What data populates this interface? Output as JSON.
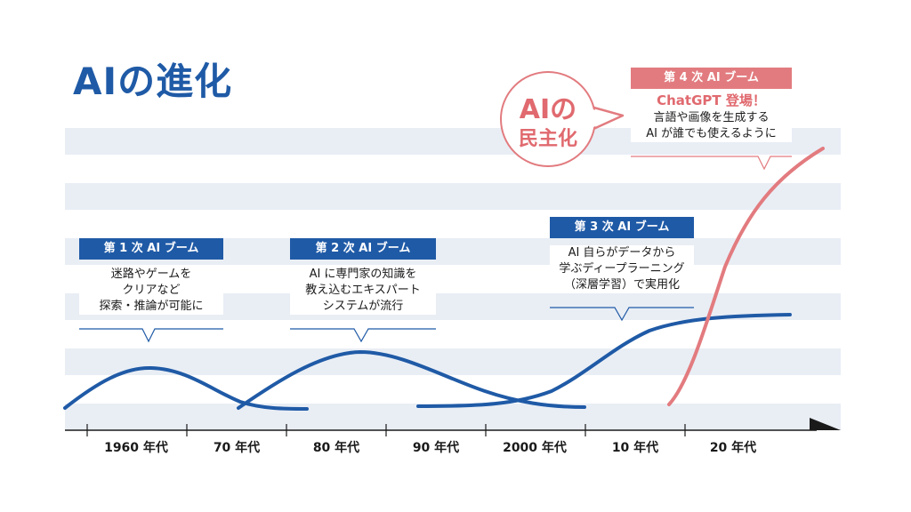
{
  "title": "AIの進化",
  "colors": {
    "blue": "#1f5aa6",
    "red": "#e27b7f",
    "stripe": "#e9eef5",
    "text": "#1a1a1a"
  },
  "timeline": {
    "labels": [
      "1960 年代",
      "70 年代",
      "80 年代",
      "90 年代",
      "2000 年代",
      "10 年代",
      "20 年代"
    ]
  },
  "booms": [
    {
      "heading": "第 1 次 AI ブーム",
      "lines": [
        "迷路やゲームを",
        "クリアなど",
        "探索・推論が可能に"
      ]
    },
    {
      "heading": "第 2 次 AI ブーム",
      "lines": [
        "AI に専門家の知識を",
        "教え込むエキスパート",
        "システムが流行"
      ]
    },
    {
      "heading": "第 3 次 AI ブーム",
      "lines": [
        "AI 自らがデータから",
        "学ぶディープラーニング",
        "（深層学習）で実用化"
      ]
    },
    {
      "heading": "第 4 次 AI ブーム",
      "highlight": "ChatGPT 登場！",
      "lines": [
        "言語や画像を生成する",
        "AI が誰でも使えるように"
      ]
    }
  ],
  "bubble": {
    "line1": "AIの",
    "line2": "民主化"
  }
}
